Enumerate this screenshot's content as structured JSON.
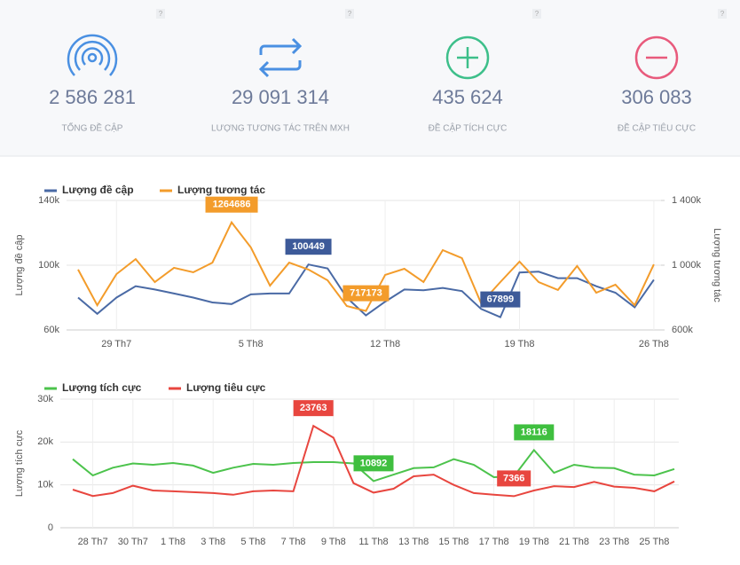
{
  "stats": [
    {
      "value": "2 586 281",
      "label": "TỔNG ĐỀ CẬP",
      "help": "?"
    },
    {
      "value": "29 091 314",
      "label": "LƯỢNG TƯƠNG TÁC TRÊN MXH",
      "help": "?"
    },
    {
      "value": "435 624",
      "label": "ĐỀ CẬP TÍCH CỰC",
      "help": "?"
    },
    {
      "value": "306 083",
      "label": "ĐỀ CẬP TIÊU CỰC",
      "help": "?"
    }
  ],
  "chart_data": [
    {
      "type": "line",
      "categories": [
        null,
        null,
        "29 Th7",
        null,
        null,
        null,
        null,
        null,
        null,
        "5 Th8",
        null,
        null,
        null,
        null,
        null,
        null,
        "12 Th8",
        null,
        null,
        null,
        null,
        null,
        null,
        "19 Th8",
        null,
        null,
        null,
        null,
        null,
        null,
        "26 Th8"
      ],
      "ylabel": "Lượng đề cập",
      "y2label": "Lượng tương tác",
      "ylim": [
        60000,
        140000
      ],
      "yticks": [
        {
          "value": 60000,
          "label": "60k"
        },
        {
          "value": 100000,
          "label": "100k"
        },
        {
          "value": 140000,
          "label": "140k"
        }
      ],
      "y2lim": [
        600000,
        1400000
      ],
      "y2ticks": [
        {
          "value": 600000,
          "label": "600k"
        },
        {
          "value": 1000000,
          "label": "1 000k"
        },
        {
          "value": 1400000,
          "label": "1 400k"
        }
      ],
      "grid": true,
      "legend": "top-left",
      "series": [
        {
          "name": "Lượng đề cập",
          "color": "#4a6aa5",
          "label_color": "#3d5a99",
          "values": [
            80000,
            70000,
            80000,
            87000,
            85000,
            82500,
            80000,
            77000,
            76000,
            82000,
            82500,
            82500,
            100449,
            98000,
            80000,
            69000,
            77500,
            85000,
            84500,
            86000,
            84000,
            73000,
            67899,
            95500,
            96000,
            92000,
            92000,
            87000,
            83000,
            74000,
            91000
          ],
          "value_labels": [
            null,
            null,
            null,
            null,
            null,
            null,
            null,
            null,
            null,
            null,
            null,
            null,
            "100449",
            null,
            null,
            null,
            null,
            null,
            null,
            null,
            null,
            null,
            "67899",
            null,
            null,
            null,
            null,
            null,
            null,
            null,
            null
          ]
        },
        {
          "name": "Lượng tương tác",
          "color": "#f39c2b",
          "label_color": "#f39c2b",
          "axis": "y2",
          "values": [
            973000,
            753000,
            945000,
            1038000,
            896000,
            984000,
            956000,
            1016000,
            1264686,
            1110000,
            874000,
            1016000,
            973000,
            907000,
            748000,
            717173,
            940000,
            978000,
            896000,
            1093000,
            1044000,
            765000,
            896000,
            1022000,
            896000,
            847000,
            995000,
            830000,
            880000,
            753000,
            1005000
          ],
          "value_labels": [
            null,
            null,
            null,
            null,
            null,
            null,
            null,
            null,
            "1264686",
            null,
            null,
            null,
            null,
            null,
            null,
            "717173",
            null,
            null,
            null,
            null,
            null,
            null,
            null,
            null,
            null,
            null,
            null,
            null,
            null,
            null,
            null
          ]
        }
      ]
    },
    {
      "type": "line",
      "categories": [
        null,
        "28 Th7",
        null,
        "30 Th7",
        null,
        "1 Th8",
        null,
        "3 Th8",
        null,
        "5 Th8",
        null,
        "7 Th8",
        null,
        "9 Th8",
        null,
        "11 Th8",
        null,
        "13 Th8",
        null,
        "15 Th8",
        null,
        "17 Th8",
        null,
        "19 Th8",
        null,
        "21 Th8",
        null,
        "23 Th8",
        null,
        "25 Th8",
        null
      ],
      "ylabel": "Lượng tích cực",
      "ylim": [
        0,
        30000
      ],
      "yticks": [
        0,
        {
          "value": 10000,
          "label": "10k"
        },
        {
          "value": 20000,
          "label": "20k"
        },
        {
          "value": 30000,
          "label": "30k"
        }
      ],
      "grid": true,
      "legend": "top-left",
      "series": [
        {
          "name": "Lượng tích cực",
          "color": "#4cc34c",
          "label_color": "#3fbf3f",
          "values": [
            16000,
            12200,
            14000,
            15000,
            14700,
            15100,
            14500,
            12800,
            14000,
            14900,
            14700,
            15100,
            15300,
            15300,
            15000,
            10892,
            12400,
            13900,
            14100,
            16000,
            14700,
            11800,
            12000,
            18116,
            12800,
            14700,
            14000,
            13900,
            12400,
            12200,
            13700
          ],
          "value_labels": [
            null,
            null,
            null,
            null,
            null,
            null,
            null,
            null,
            null,
            null,
            null,
            null,
            null,
            null,
            null,
            "10892",
            null,
            null,
            null,
            null,
            null,
            null,
            null,
            "18116",
            null,
            null,
            null,
            null,
            null,
            null,
            null
          ]
        },
        {
          "name": "Lượng tiêu cực",
          "color": "#e8463f",
          "label_color": "#e8463f",
          "values": [
            8900,
            7400,
            8100,
            9800,
            8700,
            8500,
            8300,
            8100,
            7700,
            8500,
            8700,
            8500,
            23763,
            21000,
            10400,
            8200,
            9100,
            12000,
            12400,
            10000,
            8100,
            7700,
            7366,
            8700,
            9700,
            9500,
            10700,
            9600,
            9300,
            8500,
            10800
          ],
          "value_labels": [
            null,
            null,
            null,
            null,
            null,
            null,
            null,
            null,
            null,
            null,
            null,
            null,
            "23763",
            null,
            null,
            null,
            null,
            null,
            null,
            null,
            null,
            null,
            "7366",
            null,
            null,
            null,
            null,
            null,
            null,
            null,
            null
          ]
        }
      ]
    }
  ]
}
